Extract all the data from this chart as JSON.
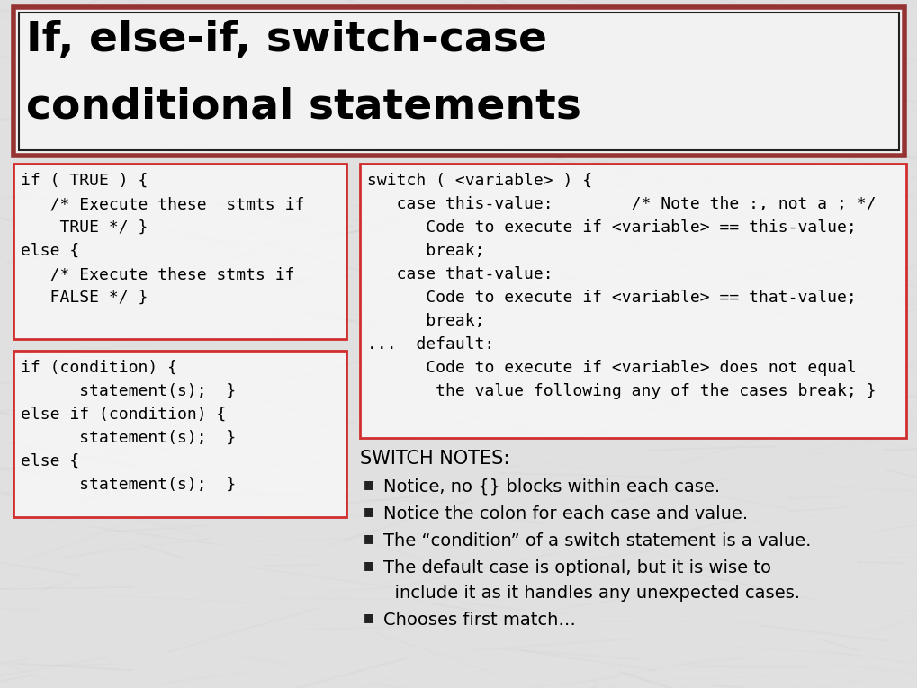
{
  "title_line1": "If, else-if, switch-case",
  "title_line2": "conditional statements",
  "title_fontsize": 34,
  "bg_color": "#e0e0e0",
  "title_box_facecolor": "#f5f5f5",
  "title_outer_border": "#8B1A1A",
  "title_inner_border": "#222222",
  "code_box1_lines": [
    "if ( TRUE ) {",
    "   /* Execute these  stmts if",
    "    TRUE */ }",
    "else {",
    "   /* Execute these stmts if",
    "   FALSE */ }"
  ],
  "code_box2_lines": [
    "switch ( <variable> ) {",
    "   case this-value:        /* Note the :, not a ; */",
    "      Code to execute if <variable> == this-value;",
    "      break;",
    "   case that-value:",
    "      Code to execute if <variable> == that-value;",
    "      break;",
    "...  default:",
    "      Code to execute if <variable> does not equal",
    "       the value following any of the cases break; }"
  ],
  "code_box3_lines": [
    "if (condition) {",
    "      statement(s);  }",
    "else if (condition) {",
    "      statement(s);  }",
    "else {",
    "      statement(s);  }"
  ],
  "switch_notes_title": "SWITCH NOTES:",
  "switch_notes": [
    "Notice, no {} blocks within each case.",
    "Notice the colon for each case and value.",
    "The “condition” of a switch statement is a value.",
    [
      "The default case is optional, but it is wise to",
      "  include it as it handles any unexpected cases."
    ],
    "Chooses first match…"
  ],
  "box_border_color": "#cc0000",
  "box_face_color": "#f8f8f8",
  "code_fontsize": 13,
  "notes_fontsize": 14,
  "notes_title_fontsize": 15
}
